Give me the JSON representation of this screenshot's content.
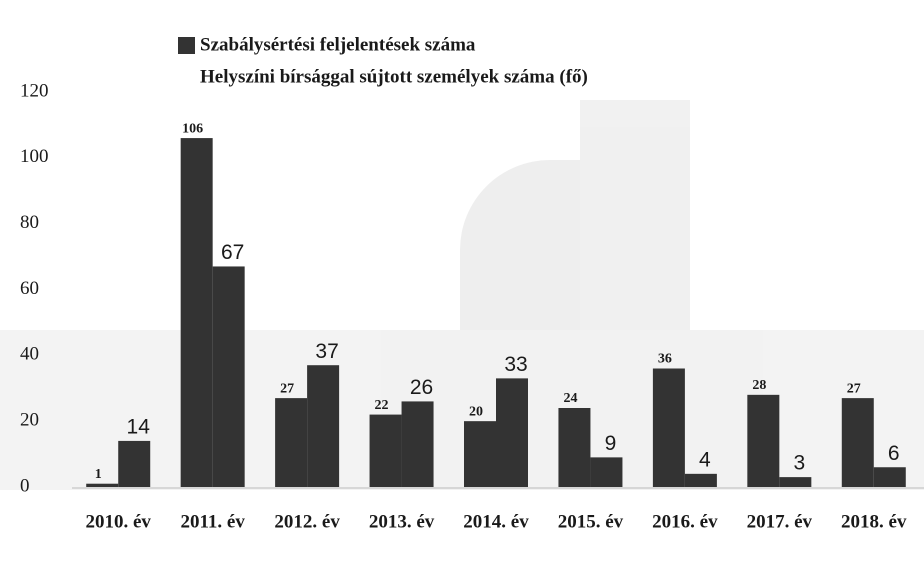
{
  "chart_data": {
    "type": "bar",
    "categories": [
      "2010. év",
      "2011. év",
      "2012. év",
      "2013. év",
      "2014. év",
      "2015. év",
      "2016. év",
      "2017. év",
      "2018. év"
    ],
    "series": [
      {
        "name": "Szabálysértési feljelentések száma",
        "color": "#333333",
        "values": [
          1,
          106,
          27,
          22,
          20,
          24,
          36,
          28,
          27
        ]
      },
      {
        "name": "Helyszíni bírsággal sújtott személyek száma (fő)",
        "color": "#333333",
        "values": [
          14,
          67,
          37,
          26,
          33,
          9,
          4,
          3,
          6
        ]
      }
    ],
    "ylim": [
      0,
      120
    ],
    "yticks": [
      0,
      20,
      40,
      60,
      80,
      100,
      120
    ]
  }
}
